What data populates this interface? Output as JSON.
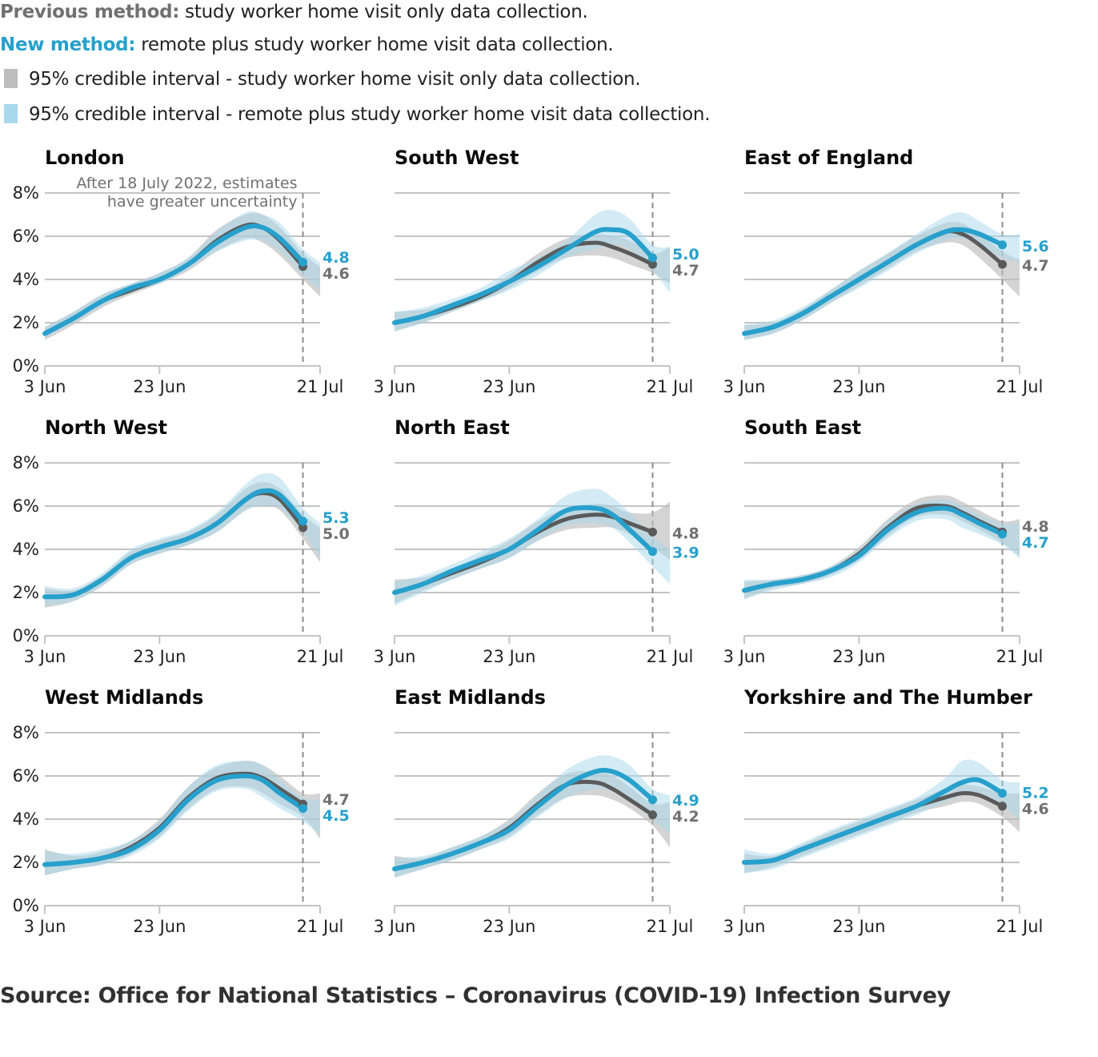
{
  "legend": {
    "previous_label": "Previous method:",
    "previous_text": " study worker home visit only data collection.",
    "new_label": "New method:",
    "new_text": " remote plus study worker home visit data collection.",
    "ci_previous": "95% credible interval - study worker home visit only data collection.",
    "ci_new": "95% credible interval - remote plus study worker home visit data collection."
  },
  "colors": {
    "previous": "#5a5a5a",
    "previous_title": "#707070",
    "new": "#27a0cc",
    "ci_previous": "#bdbdbd",
    "ci_new": "#a8d8ec",
    "grid": "#c4c4c4",
    "dashed": "#8c8c8c"
  },
  "source": "Source: Office for National Statistics – Coronavirus (COVID-19) Infection Survey",
  "chart_data": {
    "type": "line",
    "title": "",
    "xlabel": "",
    "ylabel": "",
    "x_ticks": [
      "3 Jun",
      "23 Jun",
      "21 Jul"
    ],
    "x_tick_days": [
      0,
      20,
      48
    ],
    "x_range_days": [
      0,
      48
    ],
    "y_ticks": [
      "0%",
      "2%",
      "4%",
      "6%",
      "8%"
    ],
    "y_tick_values": [
      0,
      2,
      4,
      6,
      8
    ],
    "ylim": [
      0,
      8
    ],
    "grid": true,
    "cutoff_day": 45,
    "annotation": [
      "After 18 July 2022, estimates",
      "have greater uncertainty"
    ],
    "x_days": [
      0,
      5,
      10,
      15,
      20,
      25,
      30,
      35,
      38,
      41,
      45
    ],
    "panels": [
      {
        "name": "London",
        "previous": [
          1.5,
          2.2,
          3.0,
          3.5,
          4.0,
          4.7,
          5.8,
          6.5,
          6.4,
          5.8,
          4.6
        ],
        "new": [
          1.5,
          2.2,
          3.0,
          3.6,
          4.0,
          4.7,
          5.7,
          6.4,
          6.4,
          5.9,
          4.8
        ],
        "previous_ci_low": [
          1.2,
          1.9,
          2.7,
          3.3,
          3.8,
          4.4,
          5.3,
          5.9,
          5.7,
          5.1,
          4.0,
          3.2
        ],
        "previous_ci_high": [
          1.8,
          2.5,
          3.3,
          3.8,
          4.3,
          5.0,
          6.3,
          7.0,
          7.0,
          6.4,
          5.2,
          4.6
        ],
        "new_ci_low": [
          1.3,
          2.0,
          2.8,
          3.4,
          3.8,
          4.5,
          5.3,
          5.8,
          5.8,
          5.3,
          4.2,
          3.5
        ],
        "new_ci_high": [
          1.8,
          2.5,
          3.3,
          3.8,
          4.3,
          5.0,
          6.2,
          7.1,
          7.0,
          6.6,
          5.4,
          4.8
        ],
        "previous_end": 4.6,
        "new_end": 4.8,
        "show_y_axis": true,
        "show_annotation": true
      },
      {
        "name": "South West",
        "previous": [
          2.0,
          2.3,
          2.7,
          3.2,
          3.9,
          4.8,
          5.5,
          5.7,
          5.5,
          5.2,
          4.7
        ],
        "new": [
          2.0,
          2.3,
          2.8,
          3.3,
          3.9,
          4.6,
          5.4,
          6.2,
          6.3,
          6.1,
          5.0
        ],
        "previous_ci_low": [
          1.6,
          2.0,
          2.5,
          3.0,
          3.6,
          4.4,
          5.0,
          5.1,
          5.0,
          4.7,
          4.3,
          3.8
        ],
        "previous_ci_high": [
          2.5,
          2.6,
          2.9,
          3.4,
          4.2,
          5.2,
          5.9,
          6.1,
          6.0,
          5.8,
          5.2,
          5.5
        ],
        "new_ci_low": [
          1.6,
          2.0,
          2.5,
          3.0,
          3.5,
          4.2,
          5.0,
          5.4,
          5.6,
          5.4,
          4.4,
          3.4
        ],
        "new_ci_high": [
          2.5,
          2.7,
          3.1,
          3.6,
          4.4,
          5.0,
          5.8,
          7.0,
          7.2,
          6.8,
          5.6,
          5.5
        ],
        "previous_end": 4.7,
        "new_end": 5.0,
        "show_y_axis": false,
        "show_annotation": false
      },
      {
        "name": "East of England",
        "previous": [
          1.5,
          1.8,
          2.4,
          3.2,
          4.0,
          4.8,
          5.6,
          6.2,
          6.1,
          5.6,
          4.7
        ],
        "new": [
          1.5,
          1.8,
          2.4,
          3.2,
          4.0,
          4.8,
          5.6,
          6.2,
          6.3,
          6.1,
          5.6
        ],
        "previous_ci_low": [
          1.2,
          1.5,
          2.1,
          2.9,
          3.7,
          4.5,
          5.3,
          5.7,
          5.6,
          5.0,
          4.0,
          3.2
        ],
        "previous_ci_high": [
          1.9,
          2.0,
          2.6,
          3.5,
          4.4,
          5.2,
          6.0,
          6.6,
          6.6,
          6.1,
          5.3,
          4.9
        ],
        "new_ci_low": [
          1.2,
          1.5,
          2.1,
          2.9,
          3.6,
          4.4,
          5.2,
          5.8,
          5.9,
          5.6,
          5.0,
          4.8
        ],
        "new_ci_high": [
          1.9,
          2.1,
          2.7,
          3.5,
          4.4,
          5.2,
          6.1,
          6.9,
          7.1,
          6.7,
          6.1,
          6.1
        ],
        "previous_end": 4.7,
        "new_end": 5.6,
        "show_y_axis": false,
        "show_annotation": false
      },
      {
        "name": "North West",
        "previous": [
          1.8,
          1.9,
          2.6,
          3.6,
          4.1,
          4.5,
          5.2,
          6.3,
          6.6,
          6.3,
          5.0
        ],
        "new": [
          1.8,
          1.9,
          2.6,
          3.6,
          4.1,
          4.5,
          5.2,
          6.3,
          6.7,
          6.5,
          5.3
        ],
        "previous_ci_low": [
          1.3,
          1.6,
          2.3,
          3.3,
          3.8,
          4.2,
          4.8,
          5.8,
          6.0,
          5.8,
          4.5,
          3.4
        ],
        "previous_ci_high": [
          2.2,
          2.1,
          2.8,
          3.9,
          4.4,
          4.8,
          5.6,
          6.8,
          7.1,
          6.8,
          5.6,
          5.0
        ],
        "new_ci_low": [
          1.4,
          1.6,
          2.3,
          3.3,
          3.8,
          4.2,
          4.8,
          5.8,
          6.0,
          5.9,
          4.8,
          3.6
        ],
        "new_ci_high": [
          2.3,
          2.2,
          2.9,
          4.0,
          4.5,
          4.9,
          5.7,
          7.0,
          7.5,
          7.3,
          5.9,
          5.2
        ],
        "previous_end": 5.0,
        "new_end": 5.3,
        "show_y_axis": true,
        "show_annotation": false
      },
      {
        "name": "North East",
        "previous": [
          2.0,
          2.4,
          2.9,
          3.4,
          4.0,
          4.8,
          5.4,
          5.6,
          5.5,
          5.2,
          4.8
        ],
        "new": [
          2.0,
          2.4,
          3.0,
          3.5,
          4.0,
          4.9,
          5.8,
          5.9,
          5.6,
          4.9,
          3.9
        ],
        "previous_ci_low": [
          1.5,
          2.1,
          2.6,
          3.1,
          3.6,
          4.4,
          4.9,
          5.0,
          5.0,
          4.7,
          4.1,
          3.5
        ],
        "previous_ci_high": [
          2.6,
          2.7,
          3.1,
          3.7,
          4.4,
          5.3,
          5.9,
          6.1,
          6.0,
          5.7,
          5.7,
          6.2
        ],
        "new_ci_low": [
          1.4,
          2.0,
          2.6,
          3.1,
          3.6,
          4.4,
          5.1,
          5.2,
          5.0,
          4.3,
          3.2,
          2.4
        ],
        "new_ci_high": [
          2.5,
          2.8,
          3.3,
          3.9,
          4.5,
          5.4,
          6.5,
          6.8,
          6.4,
          5.7,
          4.6,
          4.0
        ],
        "previous_end": 4.8,
        "new_end": 3.9,
        "show_y_axis": false,
        "show_annotation": false
      },
      {
        "name": "South East",
        "previous": [
          2.1,
          2.4,
          2.6,
          3.0,
          3.8,
          5.0,
          5.9,
          6.0,
          5.7,
          5.3,
          4.8
        ],
        "new": [
          2.1,
          2.4,
          2.6,
          3.0,
          3.7,
          4.9,
          5.7,
          5.9,
          5.6,
          5.2,
          4.7
        ],
        "previous_ci_low": [
          1.7,
          2.2,
          2.4,
          2.8,
          3.5,
          4.6,
          5.5,
          5.6,
          5.3,
          4.9,
          4.3,
          3.7
        ],
        "previous_ci_high": [
          2.5,
          2.6,
          2.8,
          3.2,
          4.1,
          5.4,
          6.3,
          6.5,
          6.2,
          5.8,
          5.3,
          5.4
        ],
        "new_ci_low": [
          1.7,
          2.1,
          2.4,
          2.7,
          3.4,
          4.5,
          5.3,
          5.4,
          5.0,
          4.7,
          4.2,
          3.6
        ],
        "new_ci_high": [
          2.6,
          2.6,
          2.8,
          3.2,
          4.0,
          5.3,
          6.1,
          6.3,
          6.0,
          5.6,
          5.2,
          5.2
        ],
        "previous_end": 4.8,
        "new_end": 4.7,
        "show_y_axis": false,
        "show_annotation": false
      },
      {
        "name": "West Midlands",
        "previous": [
          1.9,
          2.0,
          2.2,
          2.7,
          3.6,
          5.0,
          5.9,
          6.1,
          5.9,
          5.4,
          4.7
        ],
        "new": [
          1.9,
          2.0,
          2.2,
          2.6,
          3.5,
          4.9,
          5.8,
          6.0,
          5.8,
          5.2,
          4.5
        ],
        "previous_ci_low": [
          1.4,
          1.7,
          1.9,
          2.4,
          3.2,
          4.5,
          5.4,
          5.5,
          5.2,
          4.7,
          4.1,
          3.1
        ],
        "previous_ci_high": [
          2.6,
          2.3,
          2.5,
          3.0,
          4.0,
          5.5,
          6.4,
          6.7,
          6.5,
          6.0,
          5.2,
          5.2
        ],
        "new_ci_low": [
          1.4,
          1.7,
          1.9,
          2.3,
          3.1,
          4.4,
          5.3,
          5.4,
          5.0,
          4.5,
          3.9,
          3.3
        ],
        "new_ci_high": [
          2.5,
          2.4,
          2.6,
          3.0,
          3.9,
          5.5,
          6.5,
          6.7,
          6.5,
          5.8,
          5.0,
          4.9
        ],
        "previous_end": 4.7,
        "new_end": 4.5,
        "show_y_axis": true,
        "show_annotation": false
      },
      {
        "name": "East Midlands",
        "previous": [
          1.7,
          2.0,
          2.4,
          2.9,
          3.6,
          4.7,
          5.6,
          5.7,
          5.4,
          4.9,
          4.2
        ],
        "new": [
          1.7,
          2.0,
          2.4,
          2.9,
          3.5,
          4.6,
          5.6,
          6.2,
          6.2,
          5.8,
          4.9
        ],
        "previous_ci_low": [
          1.3,
          1.7,
          2.1,
          2.6,
          3.2,
          4.2,
          5.0,
          5.1,
          4.9,
          4.5,
          3.7,
          2.7
        ],
        "previous_ci_high": [
          2.3,
          2.2,
          2.7,
          3.2,
          4.0,
          5.2,
          6.1,
          6.2,
          6.0,
          5.5,
          4.7,
          4.8
        ],
        "new_ci_low": [
          1.3,
          1.7,
          2.1,
          2.6,
          3.1,
          4.1,
          5.0,
          5.4,
          5.3,
          5.0,
          4.0,
          3.3
        ],
        "new_ci_high": [
          2.2,
          2.3,
          2.7,
          3.2,
          3.9,
          5.1,
          6.3,
          6.9,
          6.9,
          6.5,
          5.4,
          5.1
        ],
        "previous_end": 4.2,
        "new_end": 4.9,
        "show_y_axis": false,
        "show_annotation": false
      },
      {
        "name": "Yorkshire and The Humber",
        "previous": [
          2.0,
          2.1,
          2.6,
          3.1,
          3.6,
          4.1,
          4.6,
          5.0,
          5.2,
          5.1,
          4.6
        ],
        "new": [
          2.0,
          2.1,
          2.6,
          3.1,
          3.6,
          4.1,
          4.6,
          5.3,
          5.7,
          5.8,
          5.2
        ],
        "previous_ci_low": [
          1.5,
          1.8,
          2.3,
          2.8,
          3.3,
          3.8,
          4.3,
          4.6,
          4.8,
          4.7,
          4.1,
          3.4
        ],
        "previous_ci_high": [
          2.4,
          2.3,
          2.8,
          3.4,
          3.9,
          4.4,
          4.9,
          5.4,
          5.6,
          5.5,
          5.2,
          5.2
        ],
        "new_ci_low": [
          1.5,
          1.7,
          2.2,
          2.7,
          3.2,
          3.7,
          4.2,
          4.8,
          5.1,
          5.1,
          4.6,
          4.0
        ],
        "new_ci_high": [
          2.6,
          2.4,
          2.9,
          3.5,
          4.0,
          4.5,
          5.0,
          5.9,
          6.7,
          6.6,
          5.8,
          5.7
        ],
        "previous_end": 4.6,
        "new_end": 5.2,
        "show_y_axis": false,
        "show_annotation": false
      }
    ]
  }
}
